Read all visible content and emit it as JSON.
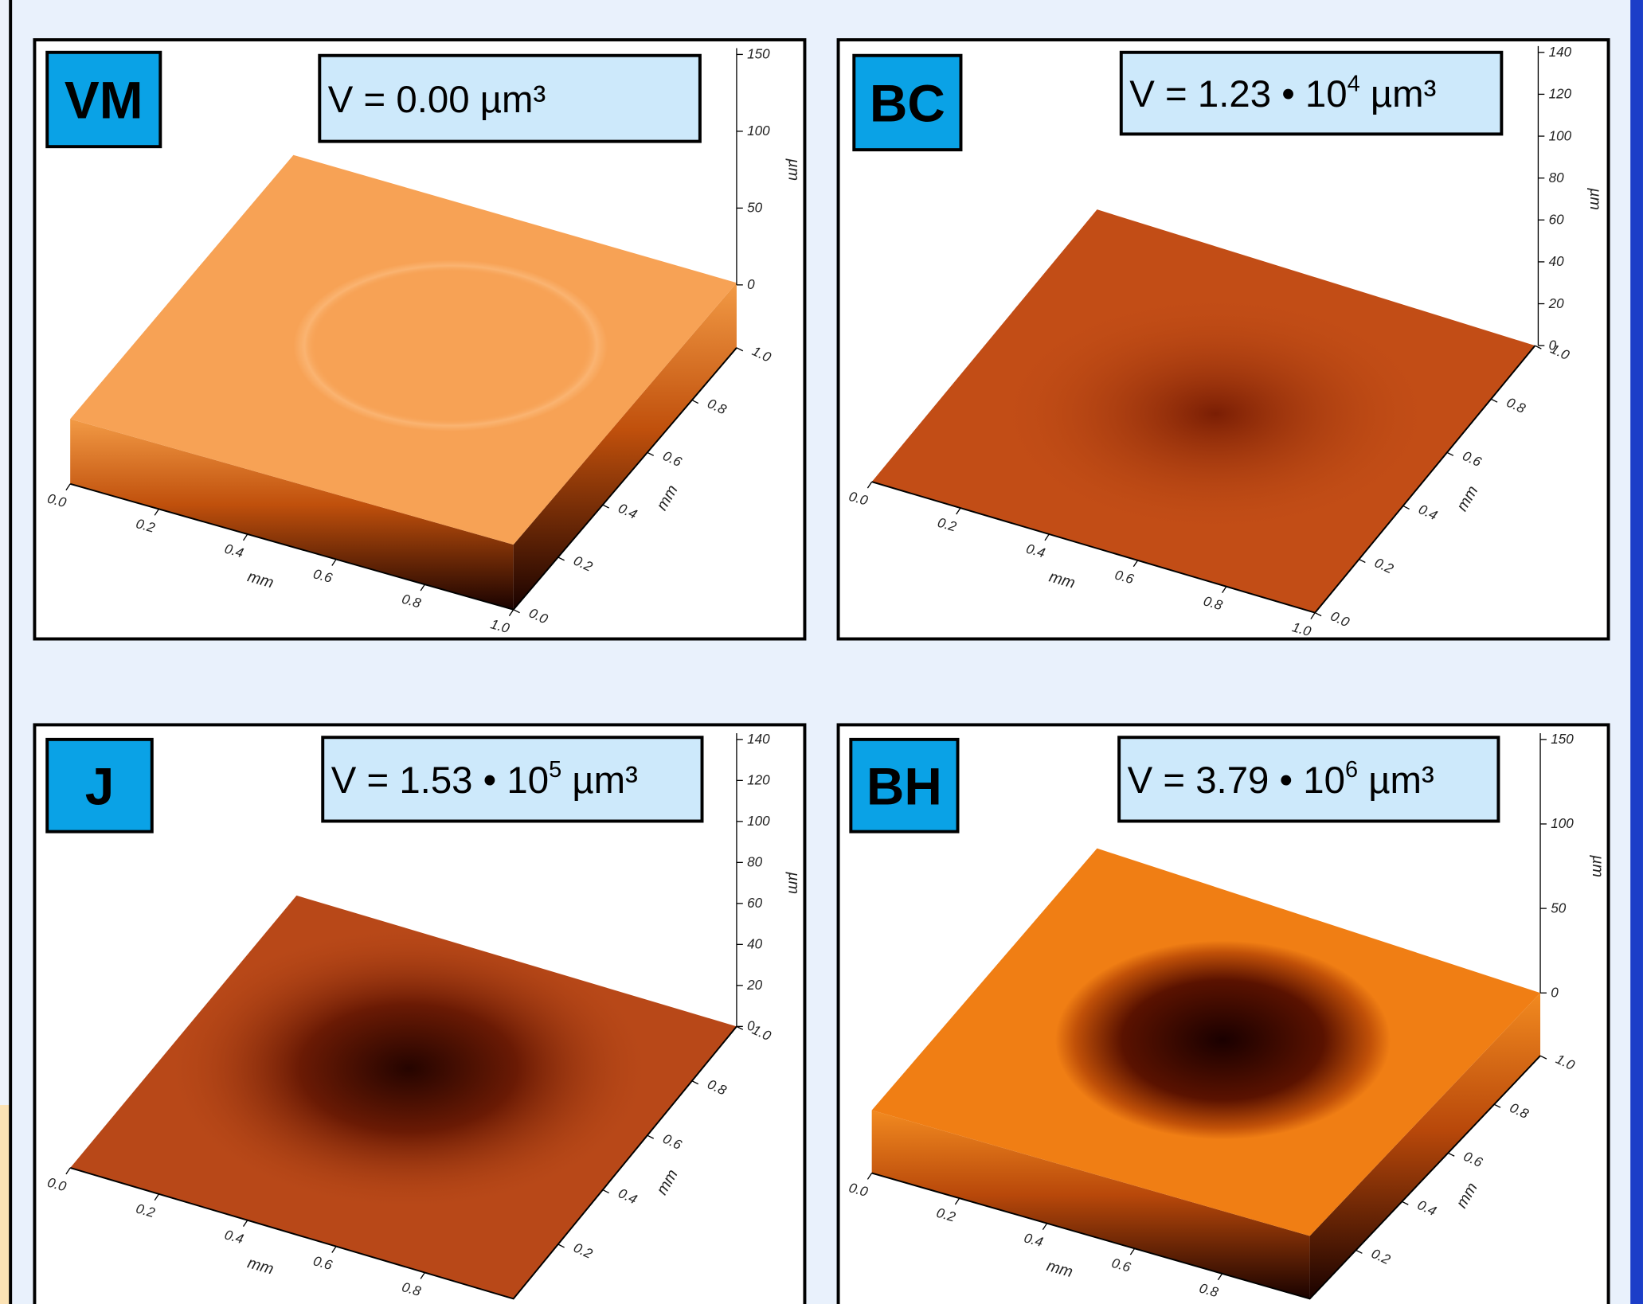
{
  "panels": [
    {
      "label": "VM",
      "volume": {
        "base": "V = 0.00",
        "unit": "µm³"
      },
      "z_ticks": [
        "150",
        "100",
        "50",
        "0"
      ],
      "z_unit": "µm",
      "x_ticks": [
        "0.0",
        "0.2",
        "0.4",
        "0.6",
        "0.8",
        "1.0"
      ],
      "x_unit": "mm",
      "y_ticks": [
        "1.0",
        "0.8",
        "0.6",
        "0.4",
        "0.2",
        "0.0"
      ],
      "y_unit": "mm"
    },
    {
      "label": "BC",
      "volume": {
        "base": "V = 1.23 • 10",
        "exponent": "4",
        "unit": "µm³"
      },
      "z_ticks": [
        "140",
        "120",
        "100",
        "80",
        "60",
        "40",
        "20",
        "0"
      ],
      "z_unit": "µm",
      "x_ticks": [
        "0.0",
        "0.2",
        "0.4",
        "0.6",
        "0.8",
        "1.0"
      ],
      "x_unit": "mm",
      "y_ticks": [
        "1.0",
        "0.8",
        "0.6",
        "0.4",
        "0.2",
        "0.0"
      ],
      "y_unit": "mm"
    },
    {
      "label": "J",
      "volume": {
        "base": "V = 1.53 • 10",
        "exponent": "5",
        "unit": "µm³"
      },
      "z_ticks": [
        "140",
        "120",
        "100",
        "80",
        "60",
        "40",
        "20",
        "0"
      ],
      "z_unit": "µm",
      "x_ticks": [
        "0.0",
        "0.2",
        "0.4",
        "0.6",
        "0.8"
      ],
      "x_unit": "mm",
      "y_ticks": [
        "1.0",
        "0.8",
        "0.6",
        "0.4",
        "0.2"
      ],
      "y_unit": "mm"
    },
    {
      "label": "BH",
      "volume": {
        "base": "V = 3.79 • 10",
        "exponent": "6",
        "unit": "µm³"
      },
      "z_ticks": [
        "150",
        "100",
        "50",
        "0"
      ],
      "z_unit": "µm",
      "x_ticks": [
        "0.0",
        "0.2",
        "0.4",
        "0.6",
        "0.8"
      ],
      "x_unit": "mm",
      "y_ticks": [
        "1.0",
        "0.8",
        "0.6",
        "0.4",
        "0.2"
      ],
      "y_unit": "mm"
    }
  ]
}
